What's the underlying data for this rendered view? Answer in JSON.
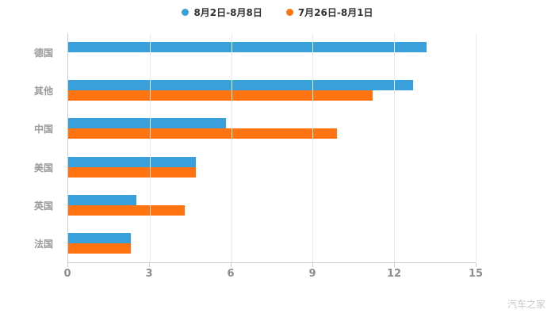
{
  "legend": [
    {
      "label": "8月2日-8月8日",
      "color": "#3aa0dc"
    },
    {
      "label": "7月26日-8月1日",
      "color": "#ff7310"
    }
  ],
  "chart_data": {
    "type": "bar",
    "orientation": "horizontal",
    "title": "",
    "categories": [
      "德国",
      "其他",
      "中国",
      "美国",
      "英国",
      "法国"
    ],
    "series": [
      {
        "name": "8月2日-8月8日",
        "color": "#3aa0dc",
        "values": [
          13.2,
          12.7,
          5.8,
          4.7,
          2.5,
          2.3
        ]
      },
      {
        "name": "7月26日-8月1日",
        "color": "#ff7310",
        "values": [
          0,
          11.2,
          9.9,
          4.7,
          4.3,
          2.3
        ]
      }
    ],
    "xlim": [
      0,
      15
    ],
    "xticks": [
      0,
      3,
      6,
      9,
      12,
      15
    ],
    "grid": true,
    "legend_position": "top"
  },
  "watermark": "汽车之家"
}
